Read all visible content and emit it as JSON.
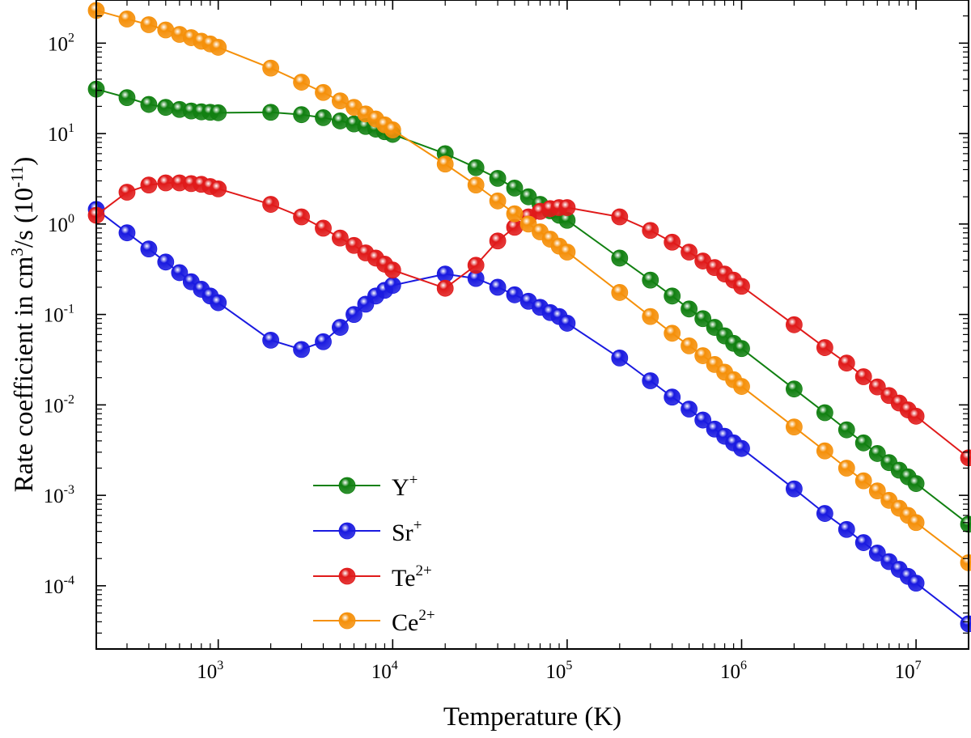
{
  "chart_data": {
    "type": "line",
    "x_scale": "log",
    "y_scale": "log",
    "xlabel": "Temperature (K)",
    "ylabel_parts": [
      "Rate coefficient in cm",
      "3",
      "/s (10",
      "-11",
      ")"
    ],
    "xlim": [
      200,
      20000000
    ],
    "ylim": [
      2e-05,
      300
    ],
    "x_ticks": [
      {
        "value": 1000,
        "base": "10",
        "exp": "3"
      },
      {
        "value": 10000,
        "base": "10",
        "exp": "4"
      },
      {
        "value": 100000,
        "base": "10",
        "exp": "5"
      },
      {
        "value": 1000000,
        "base": "10",
        "exp": "6"
      },
      {
        "value": 10000000,
        "base": "10",
        "exp": "7"
      }
    ],
    "y_ticks": [
      {
        "value": 0.0001,
        "base": "10",
        "exp": "-4"
      },
      {
        "value": 0.001,
        "base": "10",
        "exp": "-3"
      },
      {
        "value": 0.01,
        "base": "10",
        "exp": "-2"
      },
      {
        "value": 0.1,
        "base": "10",
        "exp": "-1"
      },
      {
        "value": 1,
        "base": "10",
        "exp": "0"
      },
      {
        "value": 10,
        "base": "10",
        "exp": "1"
      },
      {
        "value": 100,
        "base": "10",
        "exp": "2"
      }
    ],
    "legend_position": "lower-left",
    "x": [
      200,
      300,
      400,
      500,
      600,
      700,
      800,
      900,
      1000,
      2000,
      3000,
      4000,
      5000,
      6000,
      7000,
      8000,
      9000,
      10000,
      20000,
      30000,
      40000,
      50000,
      60000,
      70000,
      80000,
      90000,
      100000,
      200000,
      300000,
      400000,
      500000,
      600000,
      700000,
      800000,
      900000,
      1000000,
      2000000,
      3000000,
      4000000,
      5000000,
      6000000,
      7000000,
      8000000,
      9000000,
      10000000,
      20000000
    ],
    "series": [
      {
        "name": "Y",
        "sup": "+",
        "color": "#118011",
        "values": [
          31,
          25,
          21,
          19.5,
          18.5,
          17.8,
          17.4,
          17.2,
          17,
          17.2,
          16.2,
          15,
          13.8,
          12.8,
          12,
          11.2,
          10.5,
          9.8,
          6,
          4.2,
          3.2,
          2.5,
          2.0,
          1.65,
          1.4,
          1.25,
          1.1,
          0.42,
          0.24,
          0.16,
          0.115,
          0.09,
          0.072,
          0.058,
          0.048,
          0.042,
          0.015,
          0.0082,
          0.0053,
          0.0038,
          0.0029,
          0.0023,
          0.0019,
          0.0016,
          0.00135,
          0.00048
        ]
      },
      {
        "name": "Sr",
        "sup": "+",
        "color": "#1a1ae0",
        "values": [
          1.45,
          0.8,
          0.53,
          0.38,
          0.29,
          0.23,
          0.19,
          0.16,
          0.135,
          0.052,
          0.041,
          0.05,
          0.072,
          0.1,
          0.13,
          0.16,
          0.185,
          0.21,
          0.28,
          0.25,
          0.2,
          0.165,
          0.14,
          0.12,
          0.105,
          0.095,
          0.08,
          0.033,
          0.0185,
          0.0122,
          0.009,
          0.0068,
          0.0054,
          0.0045,
          0.0038,
          0.0033,
          0.00118,
          0.00063,
          0.00042,
          0.0003,
          0.00023,
          0.000185,
          0.000152,
          0.000127,
          0.000107,
          3.8e-05
        ]
      },
      {
        "name": "Te",
        "sup": "2+",
        "color": "#e01a1a",
        "values": [
          1.25,
          2.25,
          2.7,
          2.85,
          2.85,
          2.8,
          2.75,
          2.6,
          2.45,
          1.65,
          1.2,
          0.9,
          0.7,
          0.58,
          0.48,
          0.42,
          0.36,
          0.31,
          0.195,
          0.35,
          0.65,
          0.92,
          1.2,
          1.38,
          1.48,
          1.52,
          1.52,
          1.2,
          0.85,
          0.63,
          0.49,
          0.39,
          0.33,
          0.28,
          0.24,
          0.205,
          0.077,
          0.043,
          0.029,
          0.0205,
          0.0158,
          0.0127,
          0.0105,
          0.0088,
          0.0075,
          0.0026
        ]
      },
      {
        "name": "Ce",
        "sup": "2+",
        "color": "#f5900a",
        "values": [
          230,
          185,
          160,
          140,
          125,
          115,
          105,
          98,
          90,
          53,
          37,
          28.5,
          23,
          19.5,
          16.5,
          14.5,
          12.5,
          11,
          4.6,
          2.7,
          1.8,
          1.3,
          1.0,
          0.82,
          0.68,
          0.57,
          0.49,
          0.175,
          0.095,
          0.062,
          0.045,
          0.035,
          0.028,
          0.023,
          0.019,
          0.016,
          0.0057,
          0.0031,
          0.002,
          0.00145,
          0.00112,
          0.00088,
          0.00072,
          0.0006,
          0.0005,
          0.00018
        ]
      }
    ]
  }
}
